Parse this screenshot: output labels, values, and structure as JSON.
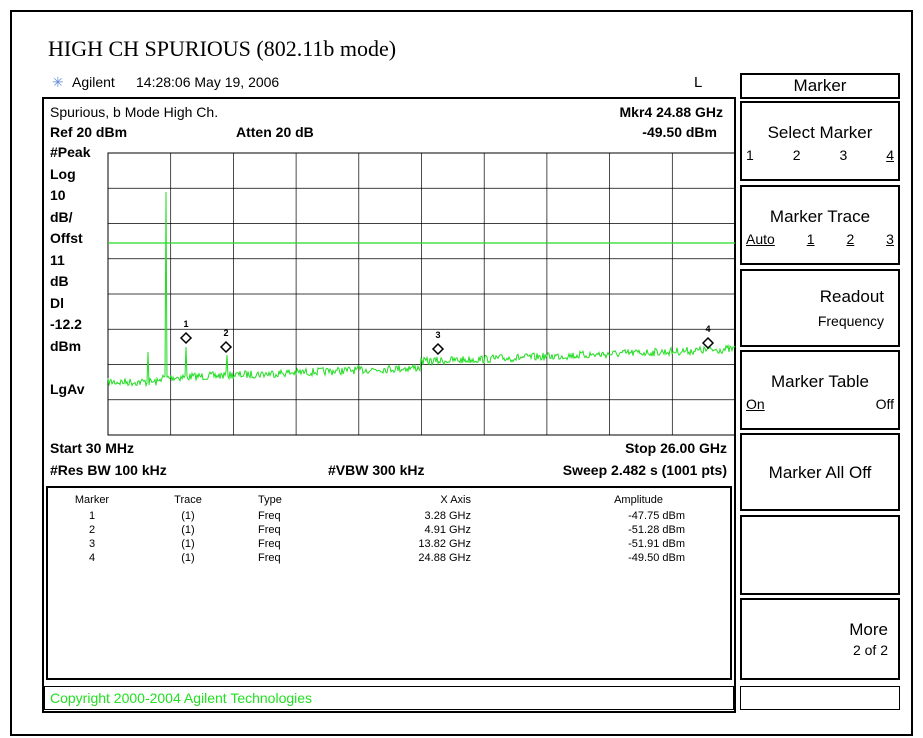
{
  "title": "HIGH CH SPURIOUS (802.11b mode)",
  "header": {
    "brand": "Agilent",
    "time": "14:28:06 May 19, 2006",
    "mode": "L"
  },
  "display": {
    "name": "Spurious, b Mode High Ch.",
    "marker_freq": "Mkr4  24.88 GHz",
    "ref": "Ref 20 dBm",
    "atten": "Atten 20 dB",
    "marker_amp": "-49.50 dBm",
    "left_labels": [
      "#Peak",
      "Log",
      "10",
      "dB/",
      "Offst",
      "11",
      "dB",
      "Dl",
      "-12.2",
      "dBm",
      "",
      "LgAv"
    ],
    "start": "Start 30 MHz",
    "stop": "Stop 26.00 GHz",
    "rbw": "#Res BW 100 kHz",
    "vbw": "#VBW 300 kHz",
    "sweep": "Sweep 2.482 s (1001 pts)"
  },
  "table": {
    "headers": [
      "Marker",
      "Trace",
      "Type",
      "X Axis",
      "Amplitude"
    ],
    "rows": [
      [
        "1",
        "(1)",
        "Freq",
        "3.28 GHz",
        "-47.75 dBm"
      ],
      [
        "2",
        "(1)",
        "Freq",
        "4.91 GHz",
        "-51.28 dBm"
      ],
      [
        "3",
        "(1)",
        "Freq",
        "13.82 GHz",
        "-51.91 dBm"
      ],
      [
        "4",
        "(1)",
        "Freq",
        "24.88 GHz",
        "-49.50 dBm"
      ]
    ]
  },
  "copyright": "Copyright 2000-2004 Agilent Technologies",
  "softkeys": {
    "menu": "Marker",
    "select": {
      "label": "Select Marker",
      "options": [
        "1",
        "2",
        "3",
        "4"
      ]
    },
    "trace": {
      "label": "Marker Trace",
      "options": [
        "Auto",
        "1",
        "2",
        "3"
      ]
    },
    "readout": {
      "label": "Readout",
      "value": "Frequency"
    },
    "table": {
      "label": "Marker Table",
      "options": [
        "On",
        "Off"
      ]
    },
    "all_off": "Marker All Off",
    "more": {
      "label": "More",
      "page": "2 of 2"
    }
  }
}
